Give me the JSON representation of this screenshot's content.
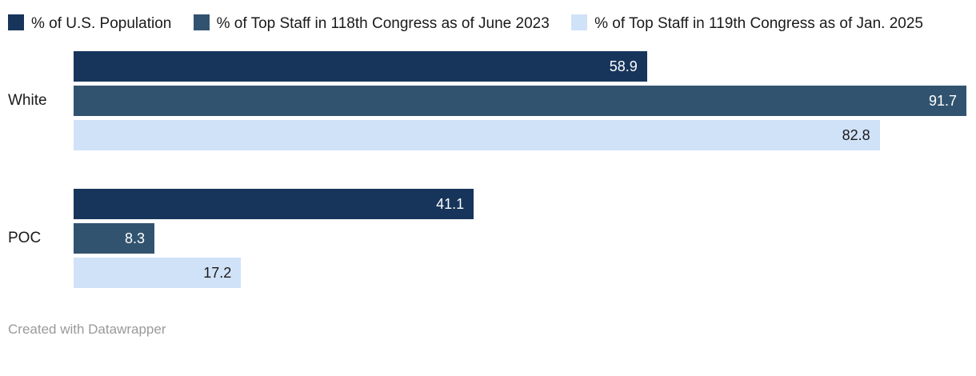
{
  "legend": [
    {
      "label": "% of U.S. Population",
      "color": "#17355b"
    },
    {
      "label": "% of Top Staff in 118th Congress as of June 2023",
      "color": "#31536f"
    },
    {
      "label": "% of Top Staff in 119th Congress as of Jan. 2025",
      "color": "#d0e2f8"
    }
  ],
  "chart_data": {
    "type": "bar",
    "orientation": "horizontal",
    "categories": [
      "White",
      "POC"
    ],
    "series": [
      {
        "name": "% of U.S. Population",
        "color": "#17355b",
        "label_color": "#ffffff",
        "values": [
          58.9,
          41.1
        ]
      },
      {
        "name": "% of Top Staff in 118th Congress as of June 2023",
        "color": "#31536f",
        "label_color": "#ffffff",
        "values": [
          91.7,
          8.3
        ]
      },
      {
        "name": "% of Top Staff in 119th Congress as of Jan. 2025",
        "color": "#d0e2f8",
        "label_color": "#1a1a1a",
        "values": [
          82.8,
          17.2
        ]
      }
    ],
    "xmax": 91.7,
    "xlabel": "",
    "ylabel": "",
    "grid": false,
    "legend_position": "top"
  },
  "footer": {
    "credit": "Created with Datawrapper"
  }
}
